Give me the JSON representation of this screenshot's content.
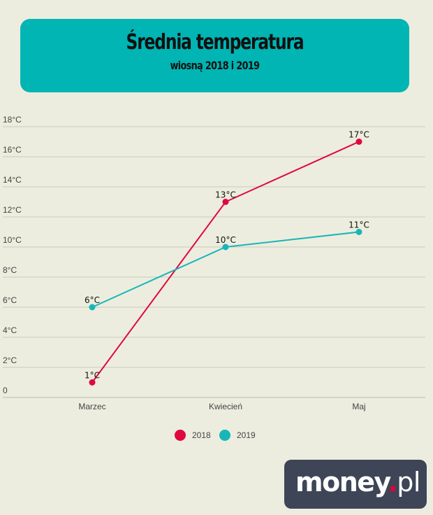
{
  "header": {
    "title": "Średnia temperatura",
    "subtitle": "wiosną 2018 i 2019"
  },
  "logo": {
    "main": "money",
    "dot": ".",
    "suffix": "pl"
  },
  "colors": {
    "header_bg": "#00b5b3",
    "series_2018": "#e0083f",
    "series_2019": "#18b6b8",
    "logo_bg": "#3d4556"
  },
  "chart_data": {
    "type": "line",
    "title": "Średnia temperatura",
    "subtitle": "wiosną 2018 i 2019",
    "categories": [
      "Marzec",
      "Kwiecień",
      "Maj"
    ],
    "series": [
      {
        "name": "2018",
        "values": [
          1,
          13,
          17
        ],
        "labels": [
          "1°C",
          "13°C",
          "17°C"
        ],
        "color": "#e0083f"
      },
      {
        "name": "2019",
        "values": [
          6,
          10,
          11
        ],
        "labels": [
          "6°C",
          "10°C",
          "11°C"
        ],
        "color": "#18b6b8"
      }
    ],
    "ylim": [
      0,
      18
    ],
    "yticks": [
      0,
      2,
      4,
      6,
      8,
      10,
      12,
      14,
      16,
      18
    ],
    "ytick_labels": [
      "0",
      "2°C",
      "4°C",
      "6°C",
      "8°C",
      "10°C",
      "12°C",
      "14°C",
      "16°C",
      "18°C"
    ],
    "grid": true,
    "legend": "bottom-center"
  }
}
